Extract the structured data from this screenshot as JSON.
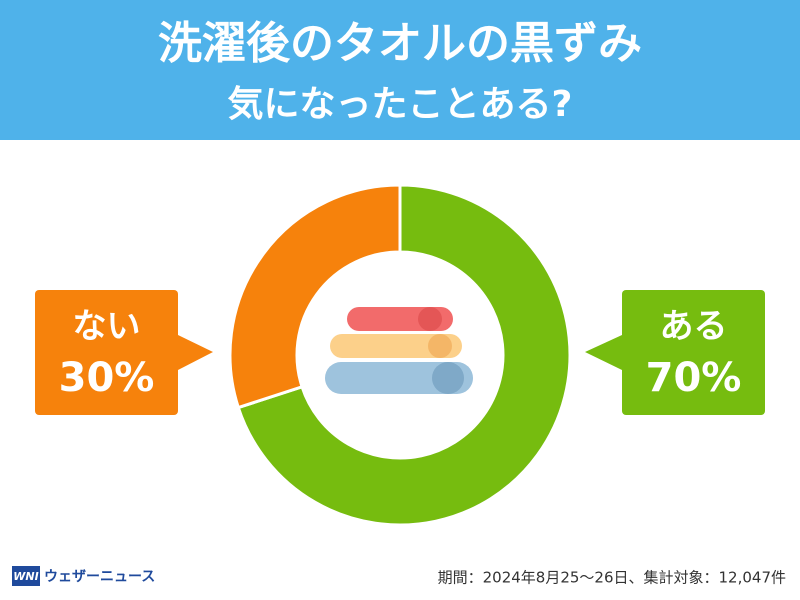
{
  "chart_data": {
    "type": "donut",
    "title": "洗濯後のタオルの黒ずみ",
    "subtitle": "気になったことある?",
    "categories": [
      "ある",
      "ない"
    ],
    "values": [
      70,
      30
    ],
    "value_labels": [
      "70%",
      "30%"
    ],
    "colors": [
      "#76bc0f",
      "#f6820c"
    ],
    "note": "期間：2024年8月25～26日、集計対象：12,047件"
  },
  "logo": {
    "mark": "WNI",
    "name": "ウェザーニュース"
  }
}
